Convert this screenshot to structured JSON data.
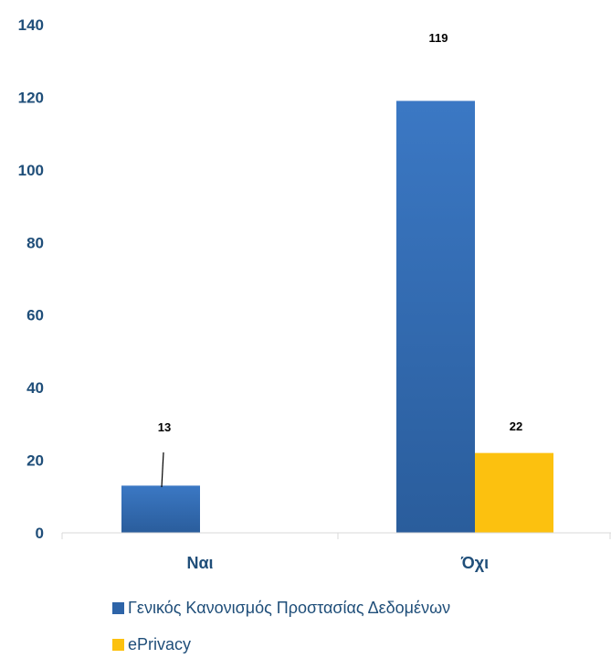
{
  "chart_data": {
    "type": "bar",
    "categories": [
      "Ναι",
      "Όχι"
    ],
    "series": [
      {
        "name": "Γενικός Κανονισμός Προστασίας Δεδομένων",
        "values": [
          13,
          119
        ],
        "color": "#2e64a8"
      },
      {
        "name": "ePrivacy",
        "values": [
          null,
          22
        ],
        "color": "#fcc10f"
      }
    ],
    "ylim": [
      0,
      140
    ],
    "yticks": [
      0,
      20,
      40,
      60,
      80,
      100,
      120,
      140
    ],
    "title": "",
    "xlabel": "",
    "ylabel": "",
    "grid": false,
    "legend_position": "bottom-left",
    "data_labels": [
      "13",
      "119",
      "22"
    ]
  }
}
